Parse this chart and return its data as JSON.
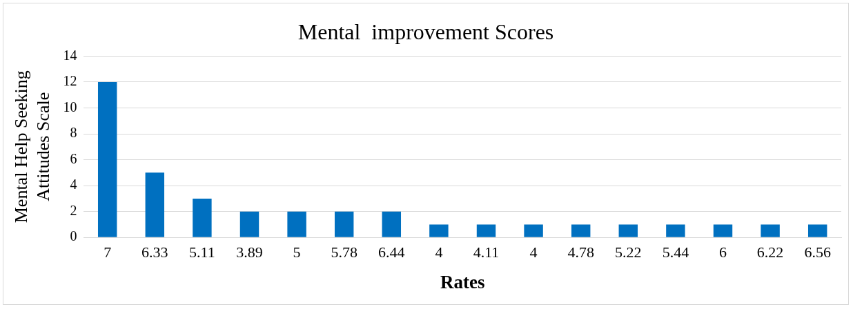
{
  "chart_data": {
    "type": "bar",
    "title": "Mental  improvement Scores",
    "xlabel": "Rates",
    "ylabel": "Mental Help Seeking Attitudes Scale",
    "categories": [
      "7",
      "6.33",
      "5.11",
      "3.89",
      "5",
      "5.78",
      "6.44",
      "4",
      "4.11",
      "4",
      "4.78",
      "5.22",
      "5.44",
      "6",
      "6.22",
      "6.56"
    ],
    "values": [
      12,
      5,
      3,
      2,
      2,
      2,
      2,
      1,
      1,
      1,
      1,
      1,
      1,
      1,
      1,
      1
    ],
    "color": "#0070c0",
    "ylim": [
      0,
      14
    ],
    "yticks": [
      0,
      2,
      4,
      6,
      8,
      10,
      12,
      14
    ],
    "grid": "y",
    "legend": false
  }
}
